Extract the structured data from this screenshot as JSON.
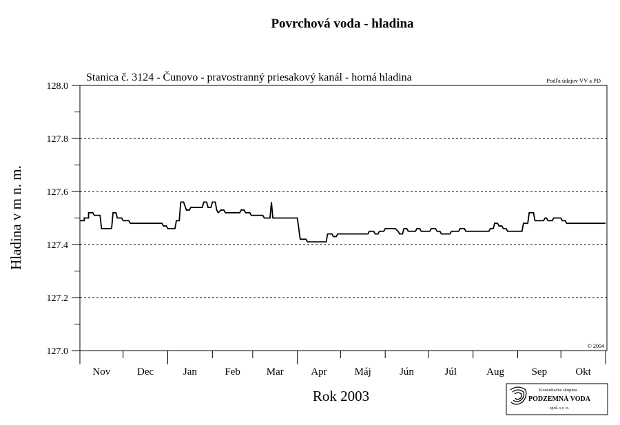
{
  "chart_data": {
    "type": "line",
    "title": "Povrchová voda - hladina",
    "subtitle": "Stanica č. 3124 - Čunovo - pravostranný priesakový kanál - horná hladina",
    "source_note": "Podľa údajov VV a PD",
    "copyright": "© 2004",
    "ylabel": "Hladina v m n. m.",
    "xlabel": "Rok 2003",
    "ylim": [
      127.0,
      128.0
    ],
    "y_ticks": [
      "127.0",
      "127.2",
      "127.4",
      "127.6",
      "127.8",
      "128.0"
    ],
    "months": [
      "Nov",
      "Dec",
      "Jan",
      "Feb",
      "Mar",
      "Apr",
      "Máj",
      "Jún",
      "Júl",
      "Aug",
      "Sep",
      "Okt"
    ],
    "grid": "horizontal dashed",
    "x_unit": "days since 1 Nov 2002",
    "series": [
      {
        "name": "horná hladina",
        "color": "#000000",
        "points": [
          [
            0,
            127.49
          ],
          [
            3,
            127.49
          ],
          [
            3,
            127.5
          ],
          [
            6,
            127.5
          ],
          [
            6,
            127.52
          ],
          [
            9,
            127.52
          ],
          [
            10,
            127.51
          ],
          [
            14,
            127.51
          ],
          [
            15,
            127.46
          ],
          [
            22,
            127.46
          ],
          [
            23,
            127.52
          ],
          [
            25,
            127.52
          ],
          [
            26,
            127.5
          ],
          [
            29,
            127.5
          ],
          [
            30,
            127.49
          ],
          [
            34,
            127.49
          ],
          [
            35,
            127.48
          ],
          [
            57,
            127.48
          ],
          [
            58,
            127.47
          ],
          [
            60,
            127.47
          ],
          [
            61,
            127.46
          ],
          [
            66,
            127.46
          ],
          [
            67,
            127.49
          ],
          [
            69,
            127.49
          ],
          [
            70,
            127.56
          ],
          [
            72,
            127.56
          ],
          [
            74,
            127.53
          ],
          [
            76,
            127.53
          ],
          [
            77,
            127.54
          ],
          [
            85,
            127.54
          ],
          [
            86,
            127.56
          ],
          [
            88,
            127.56
          ],
          [
            89,
            127.54
          ],
          [
            91,
            127.54
          ],
          [
            92,
            127.56
          ],
          [
            94,
            127.56
          ],
          [
            95,
            127.53
          ],
          [
            96,
            127.52
          ],
          [
            98,
            127.53
          ],
          [
            100,
            127.53
          ],
          [
            101,
            127.52
          ],
          [
            111,
            127.52
          ],
          [
            112,
            127.53
          ],
          [
            114,
            127.53
          ],
          [
            115,
            127.52
          ],
          [
            118,
            127.52
          ],
          [
            119,
            127.51
          ],
          [
            127,
            127.51
          ],
          [
            128,
            127.5
          ],
          [
            132,
            127.5
          ],
          [
            133,
            127.56
          ],
          [
            134,
            127.5
          ],
          [
            151,
            127.5
          ],
          [
            153,
            127.42
          ],
          [
            157,
            127.42
          ],
          [
            158,
            127.41
          ],
          [
            171,
            127.41
          ],
          [
            172,
            127.44
          ],
          [
            175,
            127.44
          ],
          [
            176,
            127.43
          ],
          [
            178,
            127.43
          ],
          [
            179,
            127.44
          ],
          [
            200,
            127.44
          ],
          [
            201,
            127.45
          ],
          [
            204,
            127.45
          ],
          [
            205,
            127.44
          ],
          [
            207,
            127.44
          ],
          [
            208,
            127.45
          ],
          [
            211,
            127.45
          ],
          [
            212,
            127.46
          ],
          [
            219,
            127.46
          ],
          [
            221,
            127.45
          ],
          [
            222,
            127.44
          ],
          [
            224,
            127.44
          ],
          [
            225,
            127.46
          ],
          [
            227,
            127.46
          ],
          [
            228,
            127.45
          ],
          [
            233,
            127.45
          ],
          [
            234,
            127.46
          ],
          [
            236,
            127.46
          ],
          [
            237,
            127.45
          ],
          [
            243,
            127.45
          ],
          [
            244,
            127.46
          ],
          [
            247,
            127.46
          ],
          [
            248,
            127.45
          ],
          [
            250,
            127.45
          ],
          [
            251,
            127.44
          ],
          [
            257,
            127.44
          ],
          [
            258,
            127.45
          ],
          [
            263,
            127.45
          ],
          [
            264,
            127.46
          ],
          [
            267,
            127.46
          ],
          [
            268,
            127.45
          ],
          [
            284,
            127.45
          ],
          [
            285,
            127.46
          ],
          [
            287,
            127.46
          ],
          [
            288,
            127.48
          ],
          [
            290,
            127.48
          ],
          [
            291,
            127.47
          ],
          [
            293,
            127.47
          ],
          [
            294,
            127.46
          ],
          [
            296,
            127.46
          ],
          [
            297,
            127.45
          ],
          [
            307,
            127.45
          ],
          [
            308,
            127.48
          ],
          [
            311,
            127.48
          ],
          [
            312,
            127.52
          ],
          [
            315,
            127.52
          ],
          [
            316,
            127.49
          ],
          [
            322,
            127.49
          ],
          [
            323,
            127.5
          ],
          [
            324,
            127.5
          ],
          [
            325,
            127.49
          ],
          [
            328,
            127.49
          ],
          [
            329,
            127.5
          ],
          [
            334,
            127.5
          ],
          [
            335,
            127.49
          ],
          [
            337,
            127.49
          ],
          [
            338,
            127.48
          ],
          [
            365,
            127.48
          ]
        ]
      }
    ]
  },
  "logo": {
    "line1": "Konzultačná skupina",
    "line2": "PODZEMNÁ VODA",
    "line3": "spol. s r. o."
  }
}
